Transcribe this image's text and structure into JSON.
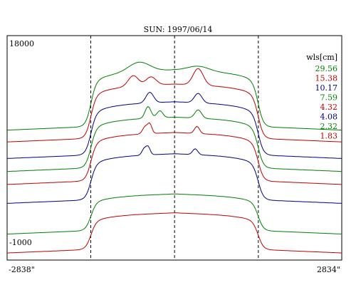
{
  "chart_data": {
    "type": "line",
    "title": "SUN: 1997/06/14",
    "y_top_label": "18000",
    "y_bottom_label": "-1000",
    "x_left_label": "-2838\"",
    "x_right_label": "2834\"",
    "ylim": [
      -1000,
      18000
    ],
    "xlim": [
      -2838,
      2834
    ],
    "legend_title": "wls[cm]",
    "legend_position": "right",
    "grid": false,
    "vlines": [
      -1420,
      0,
      1420
    ],
    "series": [
      {
        "name": "29.56",
        "color": "#008000",
        "base": 10000,
        "plateau": 4500,
        "peaks": [
          [
            -600,
            800,
            250
          ],
          [
            400,
            400,
            250
          ]
        ]
      },
      {
        "name": "15.38",
        "color": "#c00000",
        "base": 9000,
        "plateau": 4300,
        "peaks": [
          [
            -700,
            900,
            120
          ],
          [
            -400,
            700,
            120
          ],
          [
            400,
            1400,
            120
          ]
        ]
      },
      {
        "name": "10.17",
        "color": "#000080",
        "base": 7600,
        "plateau": 4200,
        "peaks": [
          [
            -420,
            900,
            90
          ],
          [
            400,
            800,
            90
          ]
        ]
      },
      {
        "name": "7.59",
        "color": "#008000",
        "base": 6500,
        "plateau": 4000,
        "peaks": [
          [
            -450,
            1000,
            70
          ],
          [
            -250,
            600,
            70
          ],
          [
            400,
            700,
            80
          ]
        ]
      },
      {
        "name": "4.32",
        "color": "#c00000",
        "base": 5400,
        "plateau": 3800,
        "peaks": [
          [
            -500,
            600,
            60
          ],
          [
            -420,
            800,
            50
          ],
          [
            380,
            600,
            60
          ]
        ]
      },
      {
        "name": "4.08",
        "color": "#000080",
        "base": 3800,
        "plateau": 3600,
        "peaks": [
          [
            -520,
            500,
            50
          ],
          [
            -450,
            700,
            50
          ],
          [
            350,
            500,
            60
          ]
        ]
      },
      {
        "name": "2.32",
        "color": "#008000",
        "base": 1200,
        "plateau": 2800,
        "peaks": []
      },
      {
        "name": "1.83",
        "color": "#c00000",
        "base": -400,
        "plateau": 2800,
        "peaks": []
      }
    ]
  }
}
